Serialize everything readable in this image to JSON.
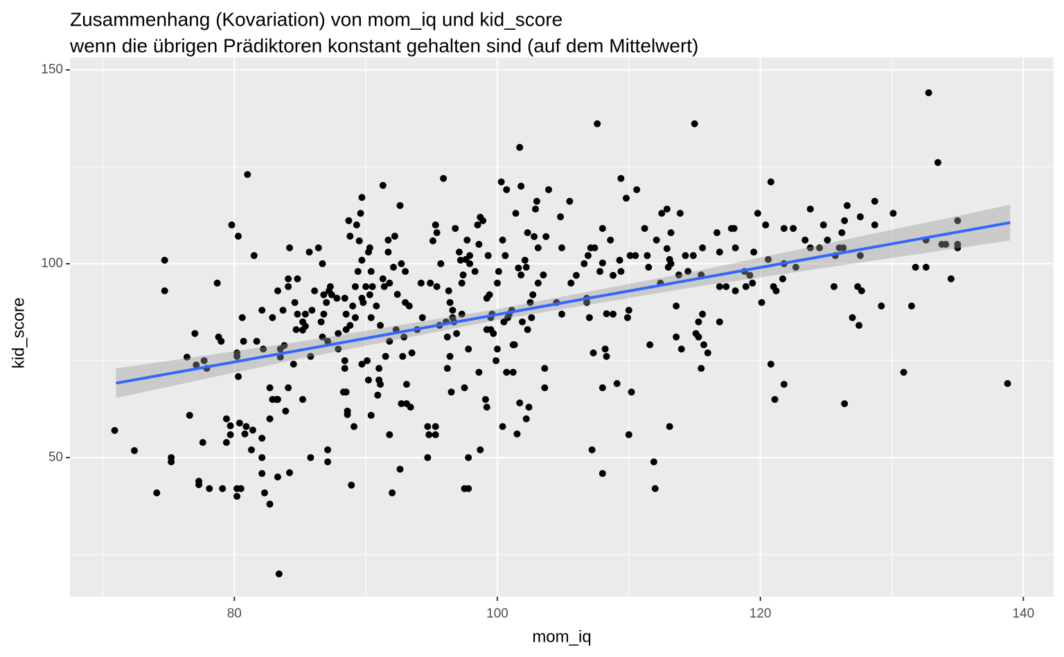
{
  "chart_data": {
    "type": "scatter",
    "title": "Zusammenhang (Kovariation) von mom_iq und kid_score",
    "subtitle": "wenn die übrigen Prädiktoren konstant gehalten sind (auf dem Mittelwert)",
    "x_label": "mom_iq",
    "y_label": "kid_score",
    "xlim": [
      67.5,
      142.3
    ],
    "ylim": [
      14.1,
      153.2
    ],
    "xticks": [
      80,
      100,
      120,
      140
    ],
    "yticks": [
      50,
      100,
      150
    ],
    "minor_xticks": [
      70,
      90,
      110,
      130
    ],
    "minor_yticks": [
      25,
      75,
      125
    ],
    "grid": true,
    "color": "#000000",
    "x": [
      70.9,
      72.4,
      74.1,
      74.7,
      74.7,
      75.2,
      75.2,
      76.4,
      76.6,
      77.0,
      77.1,
      77.3,
      77.3,
      77.6,
      77.7,
      77.9,
      78.1,
      78.7,
      78.8,
      79.0,
      79.1,
      79.4,
      79.4,
      79.8,
      79.7,
      79.7,
      80.2,
      80.2,
      80.2,
      80.2,
      80.3,
      80.3,
      80.4,
      80.5,
      80.6,
      80.7,
      80.9,
      80.8,
      81.0,
      81.3,
      81.4,
      81.5,
      81.7,
      82.1,
      82.1,
      82.1,
      82.1,
      82.2,
      82.3,
      82.7,
      82.7,
      82.9,
      82.9,
      83.2,
      82.7,
      83.3,
      83.3,
      83.4,
      83.3,
      83.5,
      83.5,
      83.7,
      83.9,
      83.8,
      84.1,
      84.1,
      84.1,
      84.2,
      84.2,
      84.5,
      84.6,
      84.7,
      84.8,
      84.8,
      85.2,
      85.2,
      85.2,
      85.4,
      85.4,
      85.7,
      85.8,
      85.8,
      85.9,
      86.1,
      86.4,
      86.6,
      86.7,
      86.7,
      86.8,
      86.8,
      87.0,
      87.1,
      87.1,
      87.1,
      87.2,
      87.3,
      87.4,
      87.8,
      87.9,
      87.9,
      88.4,
      88.5,
      88.4,
      88.4,
      88.3,
      88.5,
      88.6,
      88.6,
      88.7,
      88.8,
      88.5,
      88.8,
      88.9,
      89.0,
      89.1,
      89.2,
      89.2,
      89.3,
      89.4,
      89.5,
      89.6,
      89.7,
      89.7,
      89.7,
      89.7,
      89.8,
      90.0,
      90.1,
      90.2,
      90.2,
      90.3,
      90.3,
      90.4,
      90.4,
      90.4,
      90.5,
      90.8,
      90.9,
      91.0,
      91.0,
      91.1,
      91.1,
      91.3,
      91.3,
      91.4,
      91.5,
      91.7,
      91.7,
      91.8,
      91.8,
      91.8,
      92.0,
      92.1,
      92.2,
      92.3,
      92.4,
      92.6,
      92.6,
      92.7,
      92.7,
      92.8,
      92.9,
      93.0,
      93.0,
      93.1,
      93.1,
      93.3,
      93.4,
      93.5,
      93.9,
      94.2,
      94.3,
      94.7,
      94.7,
      94.8,
      94.9,
      95.1,
      95.3,
      95.3,
      95.3,
      95.4,
      95.4,
      95.6,
      95.7,
      95.9,
      96.1,
      96.2,
      96.2,
      96.3,
      96.4,
      96.4,
      96.5,
      96.6,
      96.6,
      96.7,
      96.8,
      96.9,
      97.1,
      97.2,
      97.3,
      97.3,
      97.4,
      97.5,
      97.5,
      97.6,
      97.7,
      97.8,
      97.8,
      97.8,
      97.9,
      97.9,
      98.3,
      98.5,
      98.6,
      98.6,
      98.7,
      98.7,
      98.9,
      99.1,
      99.2,
      99.2,
      99.2,
      99.3,
      99.4,
      99.5,
      99.5,
      99.6,
      99.7,
      99.9,
      100.0,
      100.0,
      100.1,
      100.3,
      100.4,
      100.4,
      100.5,
      100.6,
      100.7,
      100.7,
      100.8,
      100.9,
      101.1,
      101.2,
      101.2,
      101.3,
      101.4,
      101.5,
      101.6,
      101.7,
      101.7,
      101.8,
      101.8,
      101.9,
      102.1,
      102.2,
      102.2,
      102.3,
      102.3,
      102.4,
      102.5,
      102.6,
      102.7,
      102.8,
      102.9,
      103.0,
      103.1,
      103.1,
      103.5,
      103.6,
      103.6,
      103.7,
      103.9,
      104.5,
      104.8,
      104.9,
      104.9,
      105.5,
      105.6,
      106.0,
      106.6,
      106.8,
      106.8,
      106.9,
      107.0,
      107.1,
      107.2,
      107.3,
      107.4,
      107.6,
      107.8,
      108.0,
      108.0,
      108.0,
      108.0,
      108.2,
      108.3,
      108.3,
      108.6,
      108.8,
      108.8,
      109.1,
      109.3,
      109.4,
      109.4,
      109.8,
      109.9,
      110.0,
      110.0,
      110.1,
      110.2,
      110.5,
      110.6,
      111.2,
      111.4,
      111.5,
      111.6,
      111.9,
      112.0,
      112.1,
      112.4,
      112.5,
      112.9,
      112.9,
      113.0,
      113.1,
      113.1,
      113.2,
      113.2,
      113.6,
      113.6,
      113.8,
      113.9,
      114.0,
      114.3,
      114.5,
      114.9,
      115.0,
      115.1,
      115.3,
      115.3,
      115.5,
      115.5,
      115.6,
      115.6,
      115.7,
      116.0,
      116.7,
      116.9,
      116.9,
      116.9,
      117.4,
      117.8,
      118.0,
      118.1,
      118.1,
      118.8,
      118.9,
      119.2,
      119.4,
      119.5,
      119.8,
      120.1,
      120.4,
      120.6,
      120.8,
      120.8,
      121.0,
      121.1,
      121.2,
      121.7,
      121.8,
      121.8,
      121.8,
      122.5,
      122.7,
      123.4,
      123.8,
      123.8,
      124.5,
      124.8,
      125.1,
      125.6,
      125.7,
      126.0,
      126.2,
      126.3,
      126.4,
      126.4,
      126.6,
      127.0,
      127.4,
      127.5,
      127.6,
      127.6,
      127.7,
      128.7,
      128.7,
      129.2,
      130.1,
      130.9,
      131.5,
      131.8,
      132.6,
      132.6,
      132.8,
      133.5,
      133.8,
      134.1,
      134.5,
      135.0,
      135.0,
      135.0,
      138.8
    ],
    "values": [
      57.0,
      51.8,
      40.9,
      100.9,
      93.0,
      50.0,
      48.9,
      75.9,
      60.9,
      82.0,
      73.9,
      43.9,
      43.0,
      53.9,
      75.0,
      73.0,
      42.0,
      95.0,
      81.1,
      80.0,
      42.0,
      60.0,
      53.9,
      110.0,
      58.2,
      55.9,
      42.0,
      40.0,
      77.0,
      76.1,
      107.1,
      70.9,
      58.9,
      42.0,
      86.1,
      80.0,
      58.0,
      56.1,
      123.0,
      52.0,
      57.1,
      102.1,
      80.0,
      88.0,
      55.0,
      50.0,
      45.9,
      78.0,
      40.9,
      38.0,
      68.0,
      86.1,
      65.0,
      65.0,
      60.0,
      65.0,
      93.0,
      20.0,
      45.0,
      75.9,
      78.0,
      88.0,
      62.0,
      78.9,
      68.0,
      96.1,
      94.1,
      104.1,
      46.1,
      74.1,
      90.0,
      83.0,
      96.1,
      87.0,
      82.9,
      85.0,
      65.0,
      83.9,
      87.0,
      103.0,
      76.1,
      50.0,
      88.0,
      93.0,
      104.1,
      85.0,
      100.0,
      81.1,
      87.0,
      92.0,
      90.0,
      52.0,
      48.9,
      80.0,
      93.0,
      94.1,
      92.0,
      91.1,
      78.0,
      82.0,
      91.1,
      87.0,
      75.0,
      73.0,
      66.9,
      66.9,
      62.0,
      61.1,
      111.1,
      107.1,
      83.0,
      84.1,
      42.9,
      89.1,
      58.0,
      86.1,
      94.1,
      110.0,
      98.0,
      105.9,
      113.0,
      117.1,
      91.1,
      100.9,
      74.1,
      90.0,
      94.1,
      75.0,
      103.0,
      70.0,
      104.1,
      92.0,
      86.1,
      98.0,
      60.9,
      94.1,
      89.1,
      66.1,
      70.0,
      73.0,
      84.1,
      68.9,
      120.2,
      96.1,
      94.1,
      76.1,
      103.0,
      106.1,
      95.0,
      55.9,
      80.0,
      40.9,
      99.1,
      107.1,
      83.0,
      92.1,
      115.0,
      47.0,
      63.9,
      100.0,
      76.1,
      81.1,
      90.0,
      98.0,
      68.9,
      63.9,
      89.1,
      63.0,
      77.0,
      83.0,
      95.0,
      86.1,
      50.0,
      58.0,
      55.9,
      95.0,
      105.9,
      110.0,
      58.0,
      55.9,
      108.0,
      94.1,
      84.1,
      100.0,
      122.0,
      85.0,
      81.1,
      73.0,
      93.0,
      76.1,
      90.0,
      66.9,
      86.1,
      88.0,
      85.0,
      109.1,
      82.0,
      103.0,
      100.9,
      95.0,
      87.0,
      97.1,
      68.0,
      42.0,
      101.1,
      106.1,
      50.0,
      42.0,
      78.0,
      102.1,
      100.0,
      98.0,
      110.0,
      105.0,
      72.0,
      112.0,
      52.0,
      111.1,
      65.0,
      83.0,
      63.0,
      91.1,
      102.1,
      92.0,
      86.1,
      83.0,
      87.0,
      82.0,
      75.0,
      78.0,
      95.0,
      98.0,
      121.1,
      106.1,
      58.0,
      85.0,
      102.1,
      72.0,
      119.1,
      86.1,
      87.0,
      88.0,
      79.1,
      72.0,
      79.1,
      113.0,
      56.1,
      98.9,
      130.0,
      64.1,
      120.0,
      97.1,
      85.0,
      100.9,
      60.0,
      99.1,
      83.0,
      108.0,
      63.0,
      90.0,
      86.1,
      92.0,
      107.0,
      114.1,
      116.1,
      95.0,
      104.1,
      97.1,
      68.0,
      73.0,
      107.0,
      119.1,
      90.0,
      112.1,
      104.1,
      87.0,
      116.1,
      95.0,
      97.0,
      100.0,
      91.1,
      90.0,
      102.1,
      86.1,
      104.1,
      52.0,
      77.0,
      104.1,
      136.1,
      98.0,
      109.1,
      100.2,
      45.9,
      68.0,
      78.0,
      76.1,
      87.1,
      106.1,
      87.0,
      97.0,
      69.1,
      100.9,
      122.0,
      98.0,
      116.9,
      86.1,
      55.9,
      88.0,
      102.1,
      66.9,
      102.1,
      119.1,
      109.1,
      102.1,
      99.1,
      79.1,
      48.9,
      42.0,
      106.1,
      95.0,
      113.0,
      103.9,
      114.1,
      99.1,
      101.1,
      58.0,
      108.0,
      100.0,
      89.1,
      81.1,
      97.1,
      113.0,
      78.0,
      102.1,
      98.0,
      102.1,
      136.1,
      82.0,
      81.1,
      85.0,
      73.0,
      97.1,
      104.1,
      87.0,
      79.1,
      77.0,
      108.0,
      85.0,
      103.0,
      94.1,
      94.1,
      109.1,
      109.1,
      93.0,
      104.1,
      98.0,
      94.1,
      97.0,
      95.0,
      103.0,
      113.0,
      90.0,
      110.0,
      101.1,
      121.1,
      74.1,
      94.1,
      65.0,
      93.0,
      96.1,
      109.1,
      100.0,
      68.9,
      109.1,
      99.1,
      106.1,
      114.1,
      104.1,
      104.1,
      110.0,
      106.1,
      94.1,
      102.1,
      104.1,
      108.0,
      104.1,
      63.9,
      111.1,
      115.0,
      86.1,
      94.1,
      84.1,
      112.1,
      102.1,
      93.0,
      116.1,
      110.0,
      89.1,
      113.0,
      72.0,
      89.1,
      99.1,
      106.1,
      99.1,
      144.1,
      126.1,
      105.0,
      105.0,
      96.1,
      111.1,
      105.0,
      104.1,
      69.1
    ],
    "fit": {
      "color": "#3366ff",
      "band_color": "#999999",
      "x": [
        71,
        85,
        100,
        115,
        139
      ],
      "values": [
        69.2,
        77.7,
        86.9,
        96.0,
        110.6
      ],
      "lower": [
        65.4,
        75.5,
        85.5,
        94.0,
        106.0
      ],
      "upper": [
        73.0,
        79.9,
        88.3,
        98.0,
        115.2
      ]
    }
  }
}
